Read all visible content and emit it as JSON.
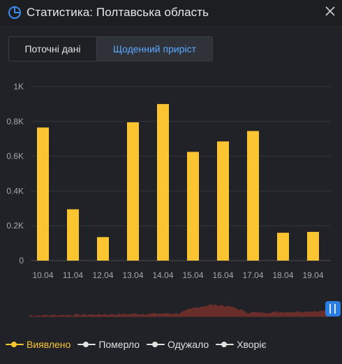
{
  "window": {
    "title": "Статистика: Полтавська область",
    "icon": "pie-chart-icon",
    "close_icon": "close-icon"
  },
  "tabs": [
    {
      "label": "Поточні дані",
      "active": false
    },
    {
      "label": "Щоденний приріст",
      "active": true
    }
  ],
  "colors": {
    "bar": "#fbc531",
    "active_tab_text": "#5aa9ff",
    "navigator_area": "#6a2e2a",
    "navigator_handle": "#2a7de1",
    "legend_inactive": "#e0e0e0"
  },
  "chart_data": {
    "type": "bar",
    "categories": [
      "10.04",
      "11.04",
      "12.04",
      "13.04",
      "14.04",
      "15.04",
      "16.04",
      "17.04",
      "18.04",
      "19.04"
    ],
    "series": [
      {
        "name": "Виявлено",
        "values": [
          765,
          295,
          135,
          795,
          900,
          625,
          685,
          745,
          160,
          165
        ]
      }
    ],
    "y_ticks": [
      "0",
      "0.2K",
      "0.4K",
      "0.6K",
      "0.8K",
      "1K"
    ],
    "ylim": [
      0,
      1000
    ],
    "grid": true
  },
  "legend": [
    {
      "label": "Виявлено",
      "color": "#fbc531",
      "active": true
    },
    {
      "label": "Померло",
      "color": "#e0e0e0",
      "active": false
    },
    {
      "label": "Одужало",
      "color": "#e0e0e0",
      "active": false
    },
    {
      "label": "Хворіє",
      "color": "#e0e0e0",
      "active": false
    }
  ]
}
